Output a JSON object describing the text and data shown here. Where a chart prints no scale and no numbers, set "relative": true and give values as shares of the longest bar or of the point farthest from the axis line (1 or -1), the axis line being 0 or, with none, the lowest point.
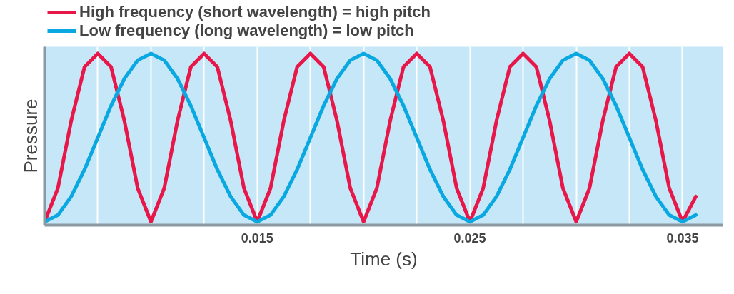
{
  "chart_data": {
    "type": "line",
    "relative": true,
    "xlabel": "Time (s)",
    "ylabel": "Pressure",
    "x": [
      0.005,
      0.005625,
      0.00625,
      0.006875,
      0.0075,
      0.008125,
      0.00875,
      0.009375,
      0.01,
      0.010625,
      0.01125,
      0.011875,
      0.0125,
      0.013125,
      0.01375,
      0.014375,
      0.015,
      0.015625,
      0.01625,
      0.016875,
      0.0175,
      0.018125,
      0.01875,
      0.019375,
      0.02,
      0.020625,
      0.02125,
      0.021875,
      0.0225,
      0.023125,
      0.02375,
      0.024375,
      0.025,
      0.025625,
      0.02625,
      0.026875,
      0.0275,
      0.028125,
      0.02875,
      0.029375,
      0.03,
      0.030625,
      0.03125,
      0.031875,
      0.0325,
      0.033125,
      0.03375,
      0.034375,
      0.035,
      0.035625
    ],
    "xlim": [
      0.005,
      0.0369
    ],
    "xticks": [
      {
        "value": 0.0075,
        "label": null
      },
      {
        "value": 0.01,
        "label": null
      },
      {
        "value": 0.0125,
        "label": null
      },
      {
        "value": 0.015,
        "label": "0.015"
      },
      {
        "value": 0.0175,
        "label": null
      },
      {
        "value": 0.02,
        "label": null
      },
      {
        "value": 0.0225,
        "label": null
      },
      {
        "value": 0.025,
        "label": "0.025"
      },
      {
        "value": 0.0275,
        "label": null
      },
      {
        "value": 0.03,
        "label": null
      },
      {
        "value": 0.0325,
        "label": null
      },
      {
        "value": 0.035,
        "label": "0.035"
      }
    ],
    "grid": "x",
    "legend": "top left",
    "line_style": "solid",
    "series": [
      {
        "name": "High frequency (short wavelength) = high pitch",
        "color": "#e8174a",
        "values": [
          0,
          0.2,
          0.6,
          0.92,
          1,
          0.92,
          0.6,
          0.2,
          0,
          0.2,
          0.6,
          0.92,
          1,
          0.92,
          0.6,
          0.2,
          0,
          0.2,
          0.6,
          0.92,
          1,
          0.92,
          0.6,
          0.2,
          0,
          0.2,
          0.6,
          0.92,
          1,
          0.92,
          0.6,
          0.2,
          0,
          0.2,
          0.6,
          0.92,
          1,
          0.92,
          0.6,
          0.2,
          0,
          0.2,
          0.6,
          0.92,
          1,
          0.92,
          0.6,
          0.2,
          0,
          0.15
        ]
      },
      {
        "name": "Low frequency (long wavelength) = low pitch",
        "color": "#0aa8e0",
        "values": [
          0,
          0.04,
          0.15,
          0.31,
          0.5,
          0.69,
          0.85,
          0.96,
          1,
          0.96,
          0.85,
          0.69,
          0.5,
          0.31,
          0.15,
          0.04,
          0,
          0.04,
          0.15,
          0.31,
          0.5,
          0.69,
          0.85,
          0.96,
          1,
          0.96,
          0.85,
          0.69,
          0.5,
          0.31,
          0.15,
          0.04,
          0,
          0.04,
          0.15,
          0.31,
          0.5,
          0.69,
          0.85,
          0.96,
          1,
          0.96,
          0.85,
          0.69,
          0.5,
          0.31,
          0.15,
          0.04,
          0,
          0.04
        ]
      }
    ]
  }
}
